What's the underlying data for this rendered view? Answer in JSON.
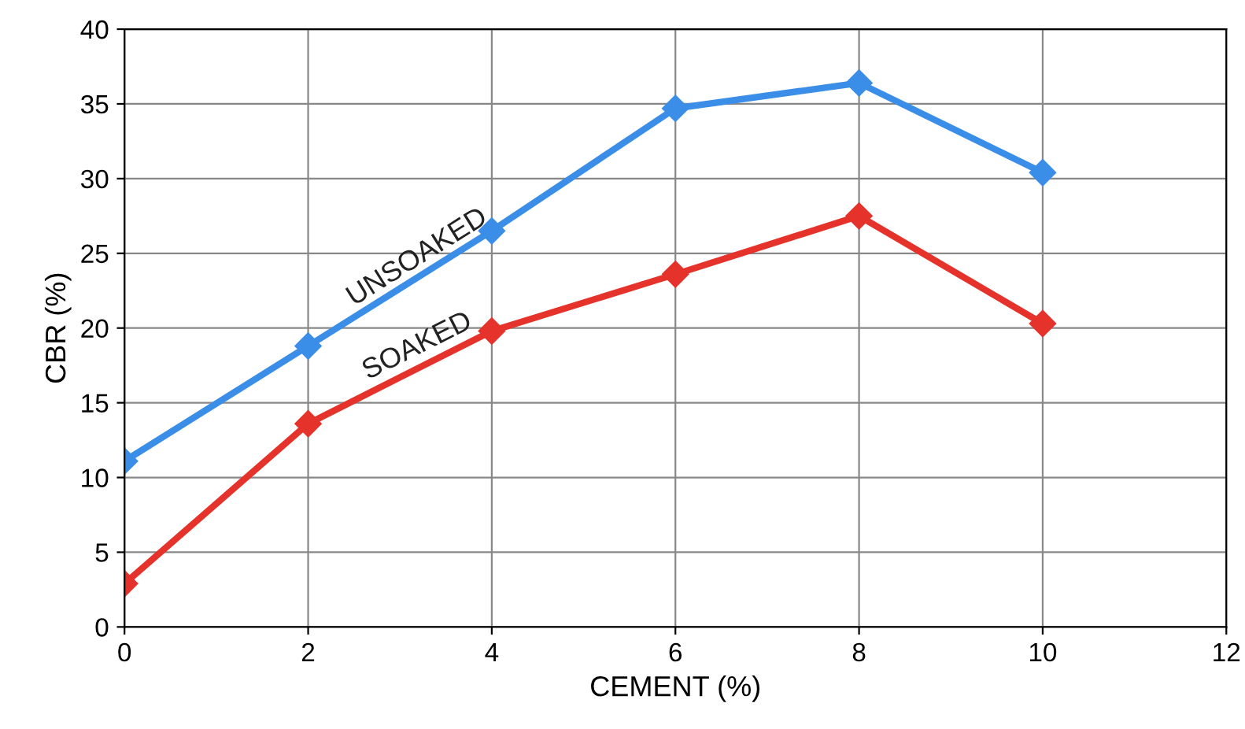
{
  "chart_data": {
    "type": "line",
    "xlabel": "CEMENT (%)",
    "ylabel": "CBR (%)",
    "x": [
      0,
      2,
      4,
      6,
      8,
      10
    ],
    "series": [
      {
        "name": "UNSOAKED",
        "color": "#3b8ee8",
        "values": [
          11.1,
          18.8,
          26.5,
          34.7,
          36.4,
          30.4
        ]
      },
      {
        "name": "SOAKED",
        "color": "#e5322b",
        "values": [
          2.9,
          13.6,
          19.8,
          23.6,
          27.5,
          20.3
        ]
      }
    ],
    "xlim": [
      0,
      12
    ],
    "xticks": [
      0,
      2,
      4,
      6,
      8,
      10,
      12
    ],
    "ylim": [
      0,
      40
    ],
    "yticks": [
      0,
      5,
      10,
      15,
      20,
      25,
      30,
      35,
      40
    ],
    "grid": true,
    "marker": "diamond",
    "line_style": "solid",
    "legend": false
  }
}
